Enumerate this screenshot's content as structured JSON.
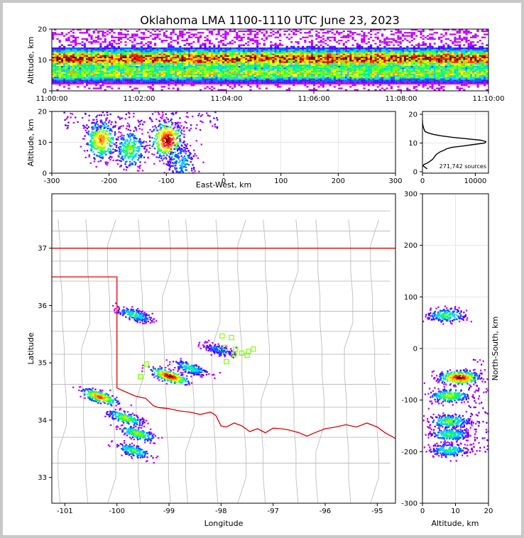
{
  "title": "Oklahoma LMA 1100-1110 UTC June 23, 2023",
  "colors": {
    "frame": "#c8c8c8",
    "state_border": "#e00000",
    "county_lines": "#bdbdbd",
    "histogram_line": "#000000",
    "stations": "#7fff00",
    "density_scale": [
      "#c000ff",
      "#5000ff",
      "#0060ff",
      "#00d0ff",
      "#00ff60",
      "#80ff00",
      "#ffff00",
      "#ffa000",
      "#ff2000",
      "#c00000",
      "#600000",
      "#ffffff"
    ]
  },
  "chart_data": [
    {
      "id": "time_height",
      "type": "heatmap",
      "title": "",
      "ylabel": "Altitude, km",
      "xlim": [
        "11:00:00",
        "11:10:00"
      ],
      "ylim": [
        0,
        20
      ],
      "xticks": [
        "11:00:00",
        "11:02:00",
        "11:04:00",
        "11:06:00",
        "11:08:00",
        "11:10:00"
      ],
      "yticks": [
        "0",
        "10",
        "20"
      ],
      "grid": true,
      "description_of_values": "source density concentrated between 2 and 14 km altitude throughout 11:00-11:10, peak near 10-11 km"
    },
    {
      "id": "ew_height",
      "type": "heatmap",
      "xlabel": "East-West, km",
      "ylabel": "Altitude, km",
      "xlim": [
        -300,
        300
      ],
      "ylim": [
        0,
        20
      ],
      "xticks": [
        "-300",
        "-200",
        "-100",
        "0",
        "100",
        "200",
        "300"
      ],
      "yticks": [
        "0",
        "10",
        "20"
      ],
      "grid": true,
      "clusters": [
        {
          "x_km": -215,
          "alt_km": 11,
          "intensity": 0.8
        },
        {
          "x_km": -165,
          "alt_km": 8,
          "intensity": 0.55
        },
        {
          "x_km": -100,
          "alt_km": 11,
          "intensity": 1.0
        },
        {
          "x_km": -75,
          "alt_km": 4,
          "intensity": 0.35
        }
      ]
    },
    {
      "id": "altitude_histogram",
      "type": "line",
      "annotation": "271,742 sources",
      "xlim": [
        0,
        12500
      ],
      "ylim": [
        -0.5,
        21
      ],
      "xticks": [
        "0",
        "10000"
      ],
      "yticks": [
        "0",
        "10",
        "20"
      ],
      "points": [
        [
          900,
          1.0
        ],
        [
          600,
          1.4
        ],
        [
          150,
          2.0
        ],
        [
          250,
          2.5
        ],
        [
          900,
          3.0
        ],
        [
          1300,
          3.5
        ],
        [
          1700,
          4.0
        ],
        [
          2000,
          4.5
        ],
        [
          2200,
          5.0
        ],
        [
          2400,
          5.5
        ],
        [
          2600,
          6.0
        ],
        [
          3000,
          6.5
        ],
        [
          3400,
          7.0
        ],
        [
          4100,
          7.5
        ],
        [
          4600,
          8.0
        ],
        [
          5600,
          8.5
        ],
        [
          7800,
          9.0
        ],
        [
          9800,
          9.5
        ],
        [
          11800,
          10.0
        ],
        [
          12000,
          10.5
        ],
        [
          11000,
          11.0
        ],
        [
          8300,
          11.5
        ],
        [
          5600,
          12.0
        ],
        [
          3600,
          12.5
        ],
        [
          2100,
          13.0
        ],
        [
          1100,
          13.5
        ],
        [
          500,
          14.0
        ],
        [
          250,
          15.0
        ],
        [
          100,
          16.0
        ],
        [
          20,
          17.0
        ],
        [
          0,
          18.0
        ]
      ]
    },
    {
      "id": "plan_view",
      "type": "heatmap",
      "xlabel": "Longitude",
      "ylabel": "Latitude",
      "xlim": [
        -101.25,
        -94.65
      ],
      "ylim": [
        32.55,
        37.95
      ],
      "xticks": [
        "-101",
        "-100",
        "-99",
        "-98",
        "-97",
        "-96",
        "-95"
      ],
      "yticks": [
        "33",
        "34",
        "35",
        "36",
        "37"
      ],
      "clusters": [
        {
          "lon": -100.35,
          "lat": 34.42,
          "intensity": 0.85
        },
        {
          "lon": -99.0,
          "lat": 34.78,
          "intensity": 1.0
        },
        {
          "lon": -98.6,
          "lat": 34.92,
          "intensity": 0.45
        },
        {
          "lon": -99.85,
          "lat": 34.05,
          "intensity": 0.6
        },
        {
          "lon": -99.62,
          "lat": 33.78,
          "intensity": 0.6
        },
        {
          "lon": -99.7,
          "lat": 33.48,
          "intensity": 0.5
        },
        {
          "lon": -99.68,
          "lat": 35.85,
          "intensity": 0.45
        },
        {
          "lon": -98.05,
          "lat": 35.24,
          "intensity": 0.3
        }
      ],
      "stations": [
        [
          -97.98,
          35.47
        ],
        [
          -97.8,
          35.44
        ],
        [
          -97.92,
          35.27
        ],
        [
          -97.72,
          35.24
        ],
        [
          -97.75,
          35.15
        ],
        [
          -97.6,
          35.17
        ],
        [
          -97.47,
          35.2
        ],
        [
          -97.38,
          35.24
        ],
        [
          -97.5,
          35.13
        ],
        [
          -97.9,
          35.02
        ],
        [
          -99.43,
          34.98
        ],
        [
          -99.55,
          34.76
        ]
      ]
    },
    {
      "id": "ns_height",
      "type": "heatmap",
      "xlabel": "Altitude, km",
      "ylabel": "North-South, km",
      "xlim": [
        0,
        20
      ],
      "ylim": [
        -300,
        300
      ],
      "xticks": [
        "0",
        "10",
        "20"
      ],
      "yticks": [
        "-300",
        "-200",
        "-100",
        "0",
        "100",
        "200",
        "300"
      ],
      "grid": true,
      "clusters": [
        {
          "alt_km": 7,
          "y_km": 66,
          "intensity": 0.5
        },
        {
          "alt_km": 11,
          "y_km": -55,
          "intensity": 1.0
        },
        {
          "alt_km": 8,
          "y_km": -90,
          "intensity": 0.6
        },
        {
          "alt_km": 8,
          "y_km": -140,
          "intensity": 0.55
        },
        {
          "alt_km": 8,
          "y_km": -165,
          "intensity": 0.5
        },
        {
          "alt_km": 8,
          "y_km": -195,
          "intensity": 0.45
        }
      ]
    }
  ]
}
